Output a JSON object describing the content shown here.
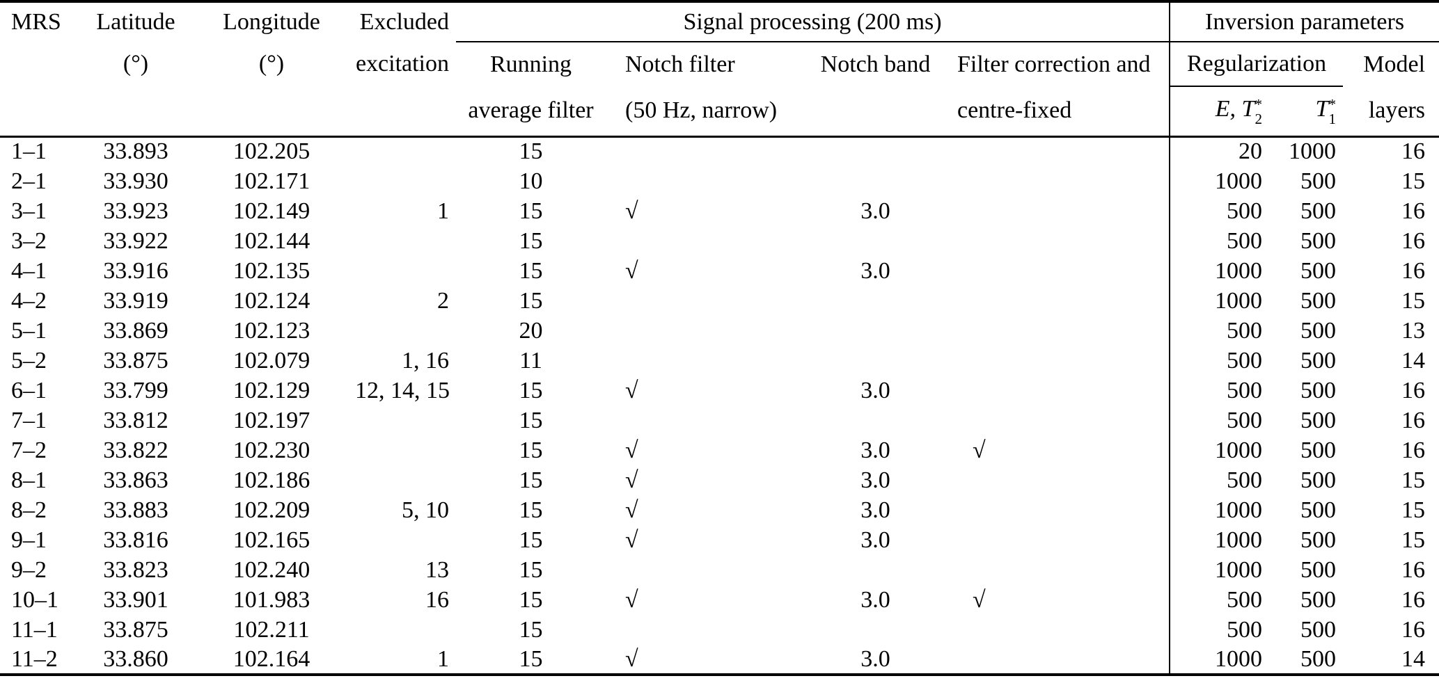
{
  "colors": {
    "text": "#000000",
    "background": "#ffffff",
    "rule": "#000000"
  },
  "table": {
    "check_glyph": "√",
    "header": {
      "mrs": "MRS",
      "latitude": "Latitude",
      "latitude_unit": "(°)",
      "longitude": "Longitude",
      "longitude_unit": "(°)",
      "excluded_line1": "Excluded",
      "excluded_line2": "excitation",
      "group_signal_processing": "Signal processing (200 ms)",
      "running_average_line1": "Running",
      "running_average_line2": "average filter",
      "notch_filter_line1": "Notch filter",
      "notch_filter_line2": "(50 Hz, narrow)",
      "notch_band": "Notch band",
      "filter_correction_line1": "Filter correction and",
      "filter_correction_line2": "centre-fixed",
      "group_inversion": "Inversion parameters",
      "regularization": "Regularization",
      "e_t2_main": "E, T",
      "e_t2_sub": "2",
      "e_t2_sup": "*",
      "t1_main": "T",
      "t1_sub": "1",
      "t1_sup": "*",
      "model_line1": "Model",
      "model_line2": "layers"
    },
    "rows": [
      {
        "mrs": "1–1",
        "lat": "33.893",
        "lon": "102.205",
        "excluded": "",
        "raf": "15",
        "notch": false,
        "band": "",
        "fc": false,
        "e_t2": "20",
        "t1": "1000",
        "layers": "16"
      },
      {
        "mrs": "2–1",
        "lat": "33.930",
        "lon": "102.171",
        "excluded": "",
        "raf": "10",
        "notch": false,
        "band": "",
        "fc": false,
        "e_t2": "1000",
        "t1": "500",
        "layers": "15"
      },
      {
        "mrs": "3–1",
        "lat": "33.923",
        "lon": "102.149",
        "excluded": "1",
        "raf": "15",
        "notch": true,
        "band": "3.0",
        "fc": false,
        "e_t2": "500",
        "t1": "500",
        "layers": "16"
      },
      {
        "mrs": "3–2",
        "lat": "33.922",
        "lon": "102.144",
        "excluded": "",
        "raf": "15",
        "notch": false,
        "band": "",
        "fc": false,
        "e_t2": "500",
        "t1": "500",
        "layers": "16"
      },
      {
        "mrs": "4–1",
        "lat": "33.916",
        "lon": "102.135",
        "excluded": "",
        "raf": "15",
        "notch": true,
        "band": "3.0",
        "fc": false,
        "e_t2": "1000",
        "t1": "500",
        "layers": "16"
      },
      {
        "mrs": "4–2",
        "lat": "33.919",
        "lon": "102.124",
        "excluded": "2",
        "raf": "15",
        "notch": false,
        "band": "",
        "fc": false,
        "e_t2": "1000",
        "t1": "500",
        "layers": "15"
      },
      {
        "mrs": "5–1",
        "lat": "33.869",
        "lon": "102.123",
        "excluded": "",
        "raf": "20",
        "notch": false,
        "band": "",
        "fc": false,
        "e_t2": "500",
        "t1": "500",
        "layers": "13"
      },
      {
        "mrs": "5–2",
        "lat": "33.875",
        "lon": "102.079",
        "excluded": "1, 16",
        "raf": "11",
        "notch": false,
        "band": "",
        "fc": false,
        "e_t2": "500",
        "t1": "500",
        "layers": "14"
      },
      {
        "mrs": "6–1",
        "lat": "33.799",
        "lon": "102.129",
        "excluded": "12, 14, 15",
        "raf": "15",
        "notch": true,
        "band": "3.0",
        "fc": false,
        "e_t2": "500",
        "t1": "500",
        "layers": "16"
      },
      {
        "mrs": "7–1",
        "lat": "33.812",
        "lon": "102.197",
        "excluded": "",
        "raf": "15",
        "notch": false,
        "band": "",
        "fc": false,
        "e_t2": "500",
        "t1": "500",
        "layers": "16"
      },
      {
        "mrs": "7–2",
        "lat": "33.822",
        "lon": "102.230",
        "excluded": "",
        "raf": "15",
        "notch": true,
        "band": "3.0",
        "fc": true,
        "e_t2": "1000",
        "t1": "500",
        "layers": "16"
      },
      {
        "mrs": "8–1",
        "lat": "33.863",
        "lon": "102.186",
        "excluded": "",
        "raf": "15",
        "notch": true,
        "band": "3.0",
        "fc": false,
        "e_t2": "500",
        "t1": "500",
        "layers": "15"
      },
      {
        "mrs": "8–2",
        "lat": "33.883",
        "lon": "102.209",
        "excluded": "5, 10",
        "raf": "15",
        "notch": true,
        "band": "3.0",
        "fc": false,
        "e_t2": "1000",
        "t1": "500",
        "layers": "15"
      },
      {
        "mrs": "9–1",
        "lat": "33.816",
        "lon": "102.165",
        "excluded": "",
        "raf": "15",
        "notch": true,
        "band": "3.0",
        "fc": false,
        "e_t2": "1000",
        "t1": "500",
        "layers": "15"
      },
      {
        "mrs": "9–2",
        "lat": "33.823",
        "lon": "102.240",
        "excluded": "13",
        "raf": "15",
        "notch": false,
        "band": "",
        "fc": false,
        "e_t2": "1000",
        "t1": "500",
        "layers": "16"
      },
      {
        "mrs": "10–1",
        "lat": "33.901",
        "lon": "101.983",
        "excluded": "16",
        "raf": "15",
        "notch": true,
        "band": "3.0",
        "fc": true,
        "e_t2": "500",
        "t1": "500",
        "layers": "16"
      },
      {
        "mrs": "11–1",
        "lat": "33.875",
        "lon": "102.211",
        "excluded": "",
        "raf": "15",
        "notch": false,
        "band": "",
        "fc": false,
        "e_t2": "500",
        "t1": "500",
        "layers": "16"
      },
      {
        "mrs": "11–2",
        "lat": "33.860",
        "lon": "102.164",
        "excluded": "1",
        "raf": "15",
        "notch": true,
        "band": "3.0",
        "fc": false,
        "e_t2": "1000",
        "t1": "500",
        "layers": "14"
      }
    ]
  }
}
